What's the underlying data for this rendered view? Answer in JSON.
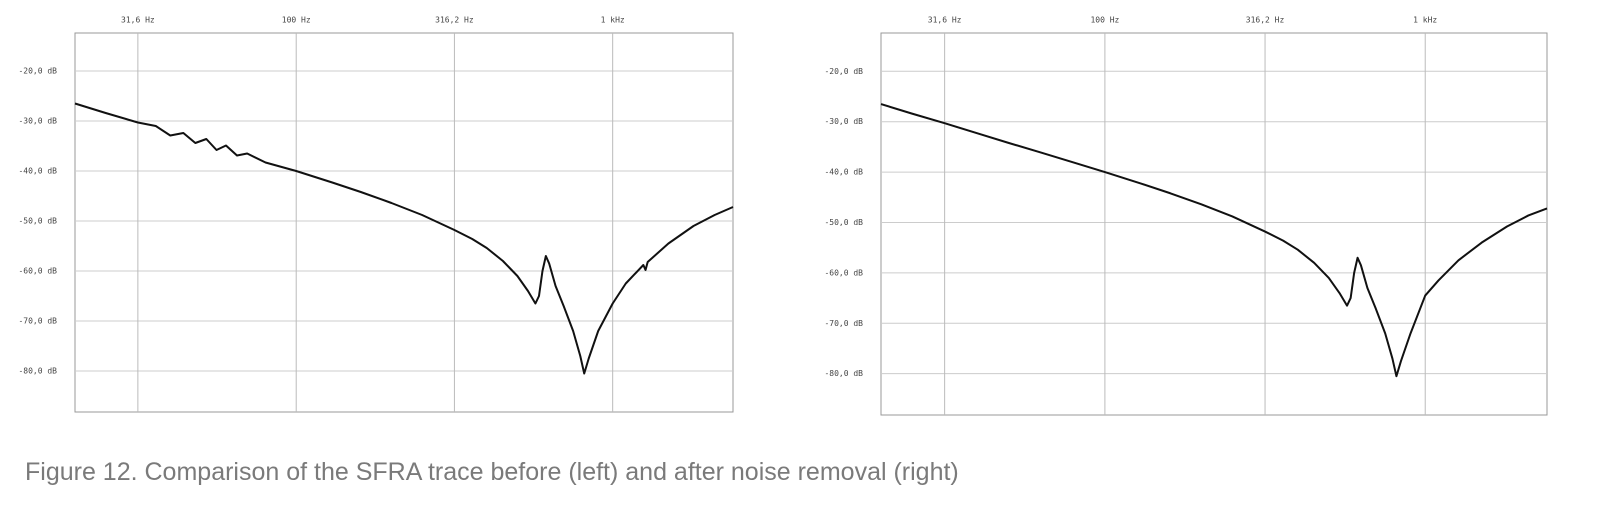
{
  "caption": "Figure 12. Comparison of the SFRA trace before (left) and after noise removal (right)",
  "chart_data": [
    {
      "type": "line",
      "xscale": "log",
      "grid": true,
      "color": "#111111",
      "xlim": [
        20,
        2400
      ],
      "ylim": [
        -88.2,
        -12.4
      ],
      "xticks": [
        {
          "value": 31.6,
          "label": "31,6 Hz"
        },
        {
          "value": 100,
          "label": "100 Hz"
        },
        {
          "value": 316.2,
          "label": "316,2 Hz"
        },
        {
          "value": 1000,
          "label": "1 kHz"
        }
      ],
      "yticks": [
        {
          "value": -20,
          "label": "-20,0 dB"
        },
        {
          "value": -30,
          "label": "-30,0 dB"
        },
        {
          "value": -40,
          "label": "-40,0 dB"
        },
        {
          "value": -50,
          "label": "-50,0 dB"
        },
        {
          "value": -60,
          "label": "-60,0 dB"
        },
        {
          "value": -70,
          "label": "-70,0 dB"
        },
        {
          "value": -80,
          "label": "-80,0 dB"
        }
      ],
      "x": [
        20,
        25,
        31.6,
        36,
        40,
        44,
        48,
        52,
        56,
        60,
        65,
        70,
        80,
        100,
        130,
        160,
        200,
        250,
        316.2,
        360,
        400,
        450,
        500,
        540,
        570,
        585,
        600,
        615,
        630,
        660,
        700,
        750,
        790,
        813,
        840,
        900,
        1000,
        1100,
        1250,
        1270,
        1290,
        1500,
        1800,
        2100,
        2400
      ],
      "values": [
        -26.5,
        -28.4,
        -30.3,
        -31.0,
        -32.9,
        -32.4,
        -34.4,
        -33.6,
        -35.8,
        -34.9,
        -36.9,
        -36.5,
        -38.3,
        -40.0,
        -42.3,
        -44.2,
        -46.4,
        -48.8,
        -51.8,
        -53.6,
        -55.4,
        -58.0,
        -61.0,
        -64.0,
        -66.5,
        -65.0,
        -60.0,
        -57.0,
        -58.5,
        -63.0,
        -67.0,
        -72.0,
        -77.0,
        -80.5,
        -77.5,
        -72.0,
        -66.5,
        -62.5,
        -58.8,
        -59.8,
        -58.2,
        -54.5,
        -51.0,
        -48.8,
        -47.2
      ]
    },
    {
      "type": "line",
      "xscale": "log",
      "grid": true,
      "color": "#111111",
      "xlim": [
        20,
        2400
      ],
      "ylim": [
        -88.2,
        -12.4
      ],
      "xticks": [
        {
          "value": 31.6,
          "label": "31,6 Hz"
        },
        {
          "value": 100,
          "label": "100 Hz"
        },
        {
          "value": 316.2,
          "label": "316,2 Hz"
        },
        {
          "value": 1000,
          "label": "1 kHz"
        }
      ],
      "yticks": [
        {
          "value": -20,
          "label": "-20,0 dB"
        },
        {
          "value": -30,
          "label": "-30,0 dB"
        },
        {
          "value": -40,
          "label": "-40,0 dB"
        },
        {
          "value": -50,
          "label": "-50,0 dB"
        },
        {
          "value": -60,
          "label": "-60,0 dB"
        },
        {
          "value": -70,
          "label": "-70,0 dB"
        },
        {
          "value": -80,
          "label": "-80,0 dB"
        }
      ],
      "x": [
        20,
        25,
        31.6,
        40,
        50,
        63,
        80,
        100,
        130,
        160,
        200,
        250,
        316.2,
        360,
        400,
        450,
        500,
        540,
        570,
        585,
        600,
        615,
        630,
        660,
        700,
        750,
        790,
        813,
        840,
        900,
        1000,
        1100,
        1270,
        1500,
        1800,
        2100,
        2400
      ],
      "values": [
        -26.5,
        -28.4,
        -30.3,
        -32.3,
        -34.2,
        -36.1,
        -38.1,
        -40.0,
        -42.3,
        -44.2,
        -46.4,
        -48.8,
        -51.8,
        -53.6,
        -55.4,
        -58.0,
        -61.0,
        -64.0,
        -66.5,
        -65.0,
        -60.0,
        -57.0,
        -58.5,
        -63.0,
        -67.0,
        -72.0,
        -77.0,
        -80.5,
        -77.5,
        -72.0,
        -64.5,
        -61.5,
        -57.5,
        -54.0,
        -50.8,
        -48.6,
        -47.2
      ]
    }
  ]
}
